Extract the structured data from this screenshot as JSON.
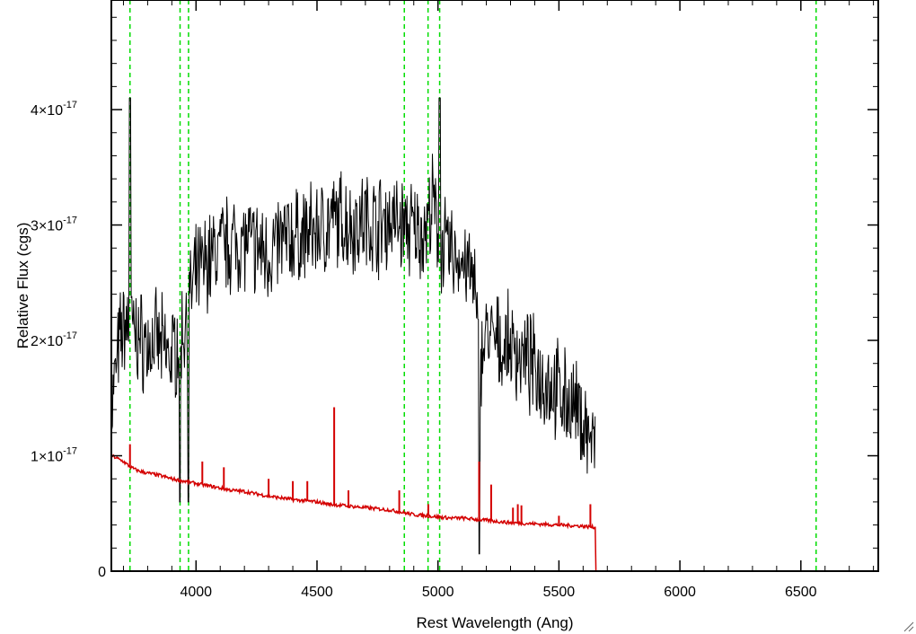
{
  "chart_data": {
    "type": "line",
    "title": "",
    "xlabel": "Rest Wavelength (Ang)",
    "ylabel": "Relative Flux (cgs)",
    "xlim": [
      3650,
      6820
    ],
    "ylim": [
      0,
      4.95e-17
    ],
    "x_ticks": [
      {
        "value": 4000,
        "label": "4000"
      },
      {
        "value": 4500,
        "label": "4500"
      },
      {
        "value": 5000,
        "label": "5000"
      },
      {
        "value": 5500,
        "label": "5500"
      },
      {
        "value": 6000,
        "label": "6000"
      },
      {
        "value": 6500,
        "label": "6500"
      }
    ],
    "y_ticks": [
      {
        "value": 0,
        "mantissa": "0",
        "exponent": ""
      },
      {
        "value": 1e-17,
        "mantissa": "1×10",
        "exponent": "-17"
      },
      {
        "value": 2e-17,
        "mantissa": "2×10",
        "exponent": "-17"
      },
      {
        "value": 3e-17,
        "mantissa": "3×10",
        "exponent": "-17"
      },
      {
        "value": 4e-17,
        "mantissa": "4×10",
        "exponent": "-17"
      }
    ],
    "grid": false,
    "legend": "none",
    "series": [
      {
        "color": "#000000",
        "x": [
          3652,
          3670,
          3690,
          3710,
          3730,
          3750,
          3775,
          3800,
          3825,
          3850,
          3875,
          3900,
          3925,
          3950,
          3975,
          4000,
          4050,
          4100,
          4150,
          4200,
          4250,
          4300,
          4350,
          4400,
          4450,
          4500,
          4550,
          4600,
          4650,
          4700,
          4750,
          4800,
          4850,
          4900,
          4950,
          4980,
          5000,
          5050,
          5100,
          5150,
          5170,
          5200,
          5250,
          5300,
          5350,
          5400,
          5450,
          5500,
          5550,
          5600,
          5630,
          5650
        ],
        "y": [
          1.45e-17,
          1.75e-17,
          2.05e-17,
          2.15e-17,
          2.1e-17,
          2.05e-17,
          2e-17,
          1.95e-17,
          2e-17,
          1.95e-17,
          1.9e-17,
          1.85e-17,
          2e-17,
          2.1e-17,
          2.35e-17,
          2.55e-17,
          2.7e-17,
          2.8e-17,
          2.85e-17,
          2.85e-17,
          2.8e-17,
          2.75e-17,
          2.85e-17,
          2.9e-17,
          2.9e-17,
          2.95e-17,
          3e-17,
          3.05e-17,
          3e-17,
          3.05e-17,
          3e-17,
          3.05e-17,
          3e-17,
          2.95e-17,
          2.95e-17,
          3.2e-17,
          2.85e-17,
          2.75e-17,
          2.7e-17,
          2.5e-17,
          1.8e-17,
          2.05e-17,
          1.95e-17,
          1.95e-17,
          1.85e-17,
          1.75e-17,
          1.65e-17,
          1.55e-17,
          1.45e-17,
          1.3e-17,
          1.15e-17,
          1.05e-17
        ]
      },
      {
        "color": "#d40000",
        "x": [
          3652,
          3700,
          3730,
          3760,
          3800,
          3850,
          3900,
          3950,
          4000,
          4050,
          4100,
          4150,
          4200,
          4300,
          4400,
          4500,
          4550,
          4600,
          4700,
          4800,
          4850,
          4900,
          4950,
          5000,
          5050,
          5100,
          5150,
          5200,
          5250,
          5300,
          5400,
          5500,
          5600,
          5640,
          5650,
          5651,
          5700,
          6000,
          6500,
          6820
        ],
        "y": [
          1e-17,
          9.5e-18,
          9e-18,
          8.7e-18,
          8.5e-18,
          8.3e-18,
          8e-18,
          7.8e-18,
          7.6e-18,
          7.4e-18,
          7.2e-18,
          7e-18,
          6.9e-18,
          6.5e-18,
          6.2e-18,
          6e-18,
          5.8e-18,
          5.7e-18,
          5.5e-18,
          5.3e-18,
          5.1e-18,
          4.9e-18,
          4.8e-18,
          4.7e-18,
          4.6e-18,
          4.6e-18,
          4.5e-18,
          4.4e-18,
          4.3e-18,
          4.2e-18,
          4.1e-18,
          4e-18,
          3.9e-18,
          3.8e-18,
          3.8e-18,
          0,
          0,
          0,
          0,
          0
        ]
      }
    ],
    "emission_spikes": [
      {
        "x": 3727,
        "y": 1.1e-17
      },
      {
        "x": 4026,
        "y": 9.5e-18
      },
      {
        "x": 4115,
        "y": 9e-18
      },
      {
        "x": 4300,
        "y": 8e-18
      },
      {
        "x": 4400,
        "y": 7.8e-18
      },
      {
        "x": 4460,
        "y": 7.8e-18
      },
      {
        "x": 4571,
        "y": 1.42e-17
      },
      {
        "x": 4630,
        "y": 7e-18
      },
      {
        "x": 4840,
        "y": 7e-18
      },
      {
        "x": 4960,
        "y": 5.8e-18
      },
      {
        "x": 5170,
        "y": 9.5e-18
      },
      {
        "x": 5220,
        "y": 7.5e-18
      },
      {
        "x": 5310,
        "y": 5.5e-18
      },
      {
        "x": 5330,
        "y": 5.8e-18
      },
      {
        "x": 5345,
        "y": 5.7e-18
      },
      {
        "x": 5500,
        "y": 4.8e-18
      },
      {
        "x": 5630,
        "y": 5.8e-18
      }
    ],
    "reference_lines": {
      "color": "#00dd00",
      "style": "dashed",
      "x": [
        3727,
        3934,
        3969,
        4861,
        4959,
        5007,
        6563
      ]
    }
  }
}
